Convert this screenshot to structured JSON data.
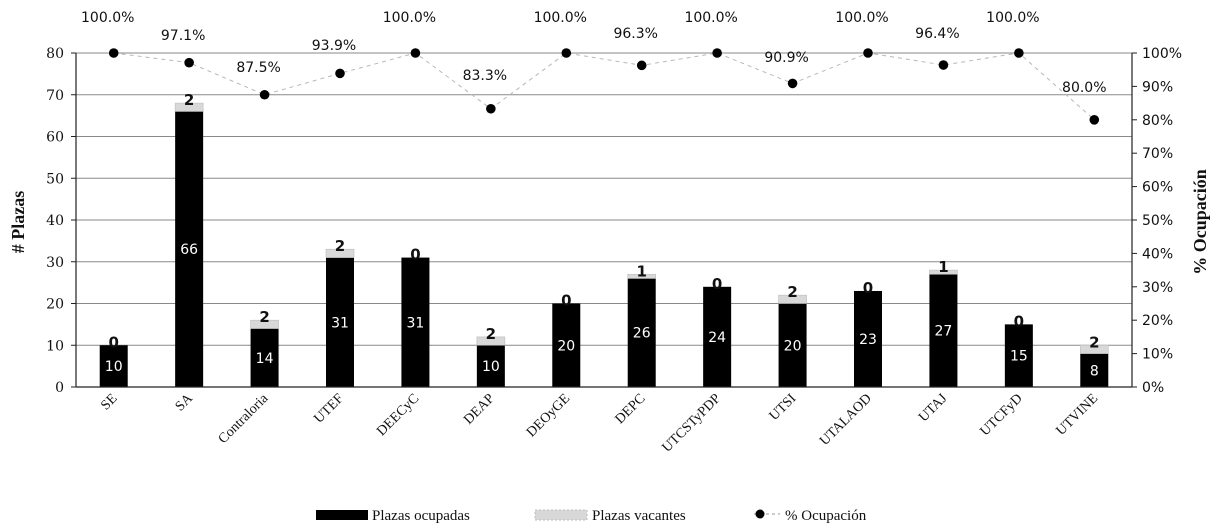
{
  "chart_data": {
    "type": "bar",
    "categories": [
      "SE",
      "SA",
      "Contraloria",
      "UTEF",
      "DEECyC",
      "DEAP",
      "DEOyGE",
      "DEPC",
      "UTCSTyPDP",
      "UTSI",
      "UTALAOD",
      "UTAJ",
      "UTCFyD",
      "UTVINE"
    ],
    "series": [
      {
        "name": "Plazas ocupadas",
        "kind": "bar",
        "stack": "plazas",
        "color": "#000000",
        "values": [
          10,
          66,
          14,
          31,
          31,
          10,
          20,
          26,
          24,
          20,
          23,
          27,
          15,
          8
        ]
      },
      {
        "name": "Plazas vacantes",
        "kind": "bar",
        "stack": "plazas",
        "color": "#d8d8d8",
        "values": [
          0,
          2,
          2,
          2,
          0,
          2,
          0,
          1,
          0,
          2,
          0,
          1,
          0,
          2
        ]
      },
      {
        "name": "% Ocupación",
        "kind": "line-dots",
        "axis": "right",
        "color": "#000000",
        "values": [
          100.0,
          97.1,
          87.5,
          93.9,
          100.0,
          83.3,
          100.0,
          96.3,
          100.0,
          90.9,
          100.0,
          96.4,
          100.0,
          80.0
        ],
        "labels": [
          "100.0%",
          "97.1%",
          "87.5%",
          "93.9%",
          "100.0%",
          "83.3%",
          "100.0%",
          "96.3%",
          "100.0%",
          "90.9%",
          "100.0%",
          "96.4%",
          "100.0%",
          "80.0%"
        ]
      }
    ],
    "ylabel": "# Plazas",
    "ylim": [
      0,
      80
    ],
    "yticks": [
      "0",
      "10",
      "20",
      "30",
      "40",
      "50",
      "60",
      "70",
      "80"
    ],
    "y2label": "% Ocupación",
    "y2lim": [
      0,
      100
    ],
    "y2ticks": [
      "0%",
      "10%",
      "20%",
      "30%",
      "40%",
      "50%",
      "60%",
      "70%",
      "80%",
      "90%",
      "100%"
    ],
    "grid": true,
    "legend": "bottom-center",
    "legend_labels": [
      "Plazas ocupadas",
      "Plazas vacantes",
      "% Ocupación"
    ]
  }
}
